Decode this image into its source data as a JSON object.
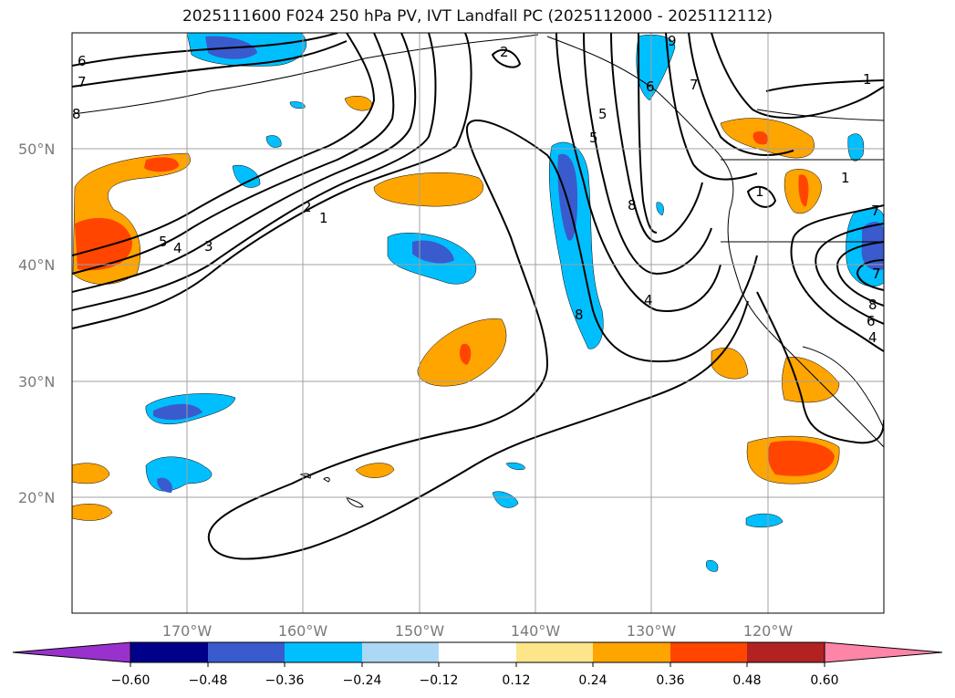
{
  "title": "2025111600 F024 250 hPa PV, IVT Landfall PC (2025112000 - 2025112112)",
  "lat_labels": [
    "50°N",
    "40°N",
    "30°N",
    "20°N"
  ],
  "lon_labels": [
    "170°W",
    "160°W",
    "150°W",
    "140°W",
    "130°W",
    "120°W"
  ],
  "contour_labels": [
    "6",
    "7",
    "8",
    "2",
    "5",
    "8",
    "7",
    "9",
    "1",
    "5",
    "6",
    "8",
    "4",
    "1",
    "2",
    "1",
    "5",
    "4",
    "3",
    "1",
    "8",
    "6",
    "4",
    "7",
    "7"
  ],
  "colorbar": {
    "ticks": [
      "−0.60",
      "−0.48",
      "−0.36",
      "−0.24",
      "−0.12",
      "0.12",
      "0.24",
      "0.36",
      "0.48",
      "0.60"
    ],
    "colors": [
      "#9932cc",
      "#00008b",
      "#3a5bcd",
      "#00bfff",
      "#add8f5",
      "#ffffff",
      "#fde58a",
      "#ffa500",
      "#ff4500",
      "#b22222",
      "#ff85a8"
    ]
  }
}
